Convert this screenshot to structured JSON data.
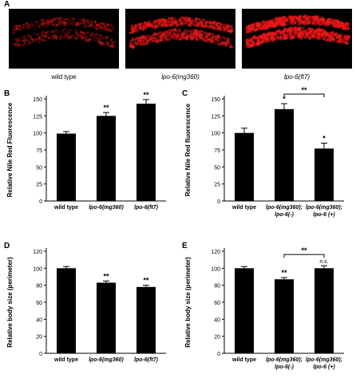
{
  "panel_a": {
    "label": "A",
    "images": [
      {
        "caption": "wild type",
        "italic": false,
        "intensity": 0.45
      },
      {
        "caption": "lpo-6(mg360)",
        "italic": true,
        "intensity": 0.8
      },
      {
        "caption": "lpo-6(ft7)",
        "italic": true,
        "intensity": 1.0
      }
    ]
  },
  "colors": {
    "image_background": "#000000",
    "fluorescence": "#e8101a",
    "bar": "#000000"
  },
  "chart_data": [
    {
      "panel": "B",
      "type": "bar",
      "ylabel": "Relative Nile Red Fluorescence",
      "ylim": [
        0,
        150
      ],
      "yticks": [
        0,
        25,
        50,
        75,
        100,
        125,
        150
      ],
      "categories": [
        [
          "wild type"
        ],
        [
          "lpo-6(mg360)"
        ],
        [
          "lpo-6(ft7)"
        ]
      ],
      "italic": [
        false,
        true,
        true
      ],
      "values": [
        99,
        125,
        143
      ],
      "errors": [
        3,
        5,
        6
      ],
      "marks": [
        "",
        "**",
        "**"
      ],
      "bracket": null
    },
    {
      "panel": "C",
      "type": "bar",
      "ylabel": "Relative Nile Red fluorescence",
      "ylim": [
        0,
        150
      ],
      "yticks": [
        0,
        25,
        50,
        75,
        100,
        125,
        150
      ],
      "categories": [
        [
          "wild type"
        ],
        [
          "lpo-6(mg360);",
          "lpo-6(-)"
        ],
        [
          "lpo-6(mg360);",
          "lpo-6 (+)"
        ]
      ],
      "italic": [
        false,
        true,
        true
      ],
      "values": [
        100,
        135,
        77
      ],
      "errors": [
        7,
        8,
        8
      ],
      "marks": [
        "",
        "*",
        "*"
      ],
      "bracket": {
        "from": 1,
        "to": 2,
        "label": "**"
      }
    },
    {
      "panel": "D",
      "type": "bar",
      "ylabel": "Relative body size (perimeter)",
      "ylim": [
        0,
        120
      ],
      "yticks": [
        0,
        20,
        40,
        60,
        80,
        100,
        120
      ],
      "categories": [
        [
          "wild type"
        ],
        [
          "lpo-6(mg360)"
        ],
        [
          "lpo-6(ft7)"
        ]
      ],
      "italic": [
        false,
        true,
        true
      ],
      "values": [
        100,
        83,
        78
      ],
      "errors": [
        2,
        2,
        2
      ],
      "marks": [
        "",
        "**",
        "**"
      ],
      "bracket": null
    },
    {
      "panel": "E",
      "type": "bar",
      "ylabel": "Relative body size (perimeter)",
      "ylim": [
        0,
        120
      ],
      "yticks": [
        0,
        20,
        40,
        60,
        80,
        100,
        120
      ],
      "categories": [
        [
          "wild type"
        ],
        [
          "lpo-6(mg360);",
          "lpo-6(-)"
        ],
        [
          "lpo-6(mg360);",
          "lpo-6 (+)"
        ]
      ],
      "italic": [
        false,
        true,
        true
      ],
      "values": [
        100,
        87,
        100
      ],
      "errors": [
        2,
        2,
        3
      ],
      "marks": [
        "",
        "**",
        "n.s."
      ],
      "bracket": {
        "from": 1,
        "to": 2,
        "label": "**"
      }
    }
  ]
}
